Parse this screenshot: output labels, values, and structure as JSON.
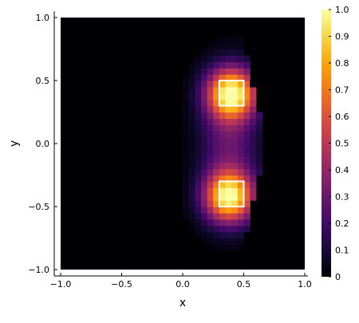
{
  "chart_data": {
    "type": "heatmap",
    "title": "",
    "xlabel": "x",
    "ylabel": "y",
    "xlim": [
      -1.0,
      1.0
    ],
    "ylim": [
      -1.0,
      1.0
    ],
    "x_ticks": [
      -1.0,
      -0.5,
      0.0,
      0.5,
      1.0
    ],
    "x_tick_labels": [
      "-1.0",
      "-0.5",
      "0.0",
      "0.5",
      "1.0"
    ],
    "y_ticks": [
      -1.0,
      -0.5,
      0.0,
      0.5,
      1.0
    ],
    "y_tick_labels": [
      "-1.0",
      "-0.5",
      "0.0",
      "0.5",
      "1.0"
    ],
    "colorbar": {
      "range": [
        0,
        1.0
      ],
      "ticks": [
        0,
        0.1,
        0.2,
        0.3,
        0.4,
        0.5,
        0.6,
        0.7,
        0.8,
        0.9,
        1.0
      ],
      "tick_labels": [
        "0",
        "0.1",
        "0.2",
        "0.3",
        "0.4",
        "0.5",
        "0.6",
        "0.7",
        "0.8",
        "0.9",
        "1.0"
      ],
      "colormap": "inferno"
    },
    "grid_resolution": 40,
    "field_shape": {
      "description_peaks": [
        {
          "x": 0.4,
          "y": 0.4,
          "amplitude": 0.95,
          "spread": 0.14
        },
        {
          "x": 0.38,
          "y": -0.42,
          "amplitude": 0.92,
          "spread": 0.14
        }
      ]
    },
    "rectangles": [
      {
        "x0": 0.3,
        "x1": 0.5,
        "y0": 0.3,
        "y1": 0.5
      },
      {
        "x0": 0.3,
        "x1": 0.5,
        "y0": -0.5,
        "y1": -0.3
      }
    ],
    "grid": false,
    "legend": "none"
  }
}
